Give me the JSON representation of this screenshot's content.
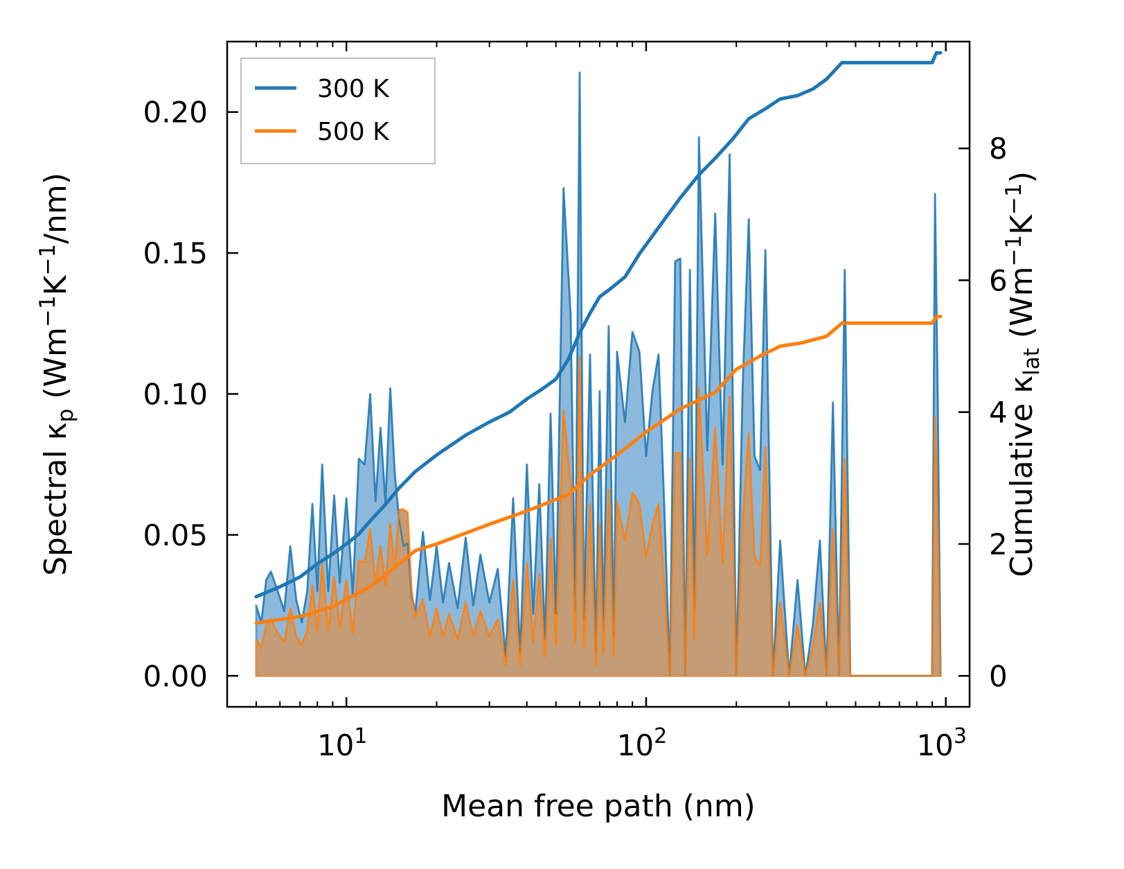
{
  "chart_data": {
    "type": "line",
    "title": "",
    "xlabel": "Mean free path (nm)",
    "xscale": "log",
    "xlim": [
      4.0,
      1200
    ],
    "x_ticks": [
      {
        "value": 10,
        "base": "10",
        "exp": "1"
      },
      {
        "value": 100,
        "base": "10",
        "exp": "2"
      },
      {
        "value": 1000,
        "base": "10",
        "exp": "3"
      }
    ],
    "y_left": {
      "label_parts": [
        "Spectral κ",
        "p",
        " (Wm",
        "−1",
        "K",
        "−1",
        "/nm)"
      ],
      "lim": [
        -0.011,
        0.225
      ],
      "ticks": [
        "0.00",
        "0.05",
        "0.10",
        "0.15",
        "0.20"
      ]
    },
    "y_right": {
      "label_parts": [
        "Cumulative κ",
        "lat",
        " (Wm",
        "−1",
        "K",
        "−1",
        ")"
      ],
      "lim": [
        -0.47,
        9.62
      ],
      "ticks": [
        "0",
        "2",
        "4",
        "6",
        "8"
      ]
    },
    "legend": {
      "position": "top-left",
      "entries": [
        "300 K",
        "500 K"
      ]
    },
    "colors": {
      "300 K": "#1f77b4",
      "500 K": "#ff7f0e",
      "spectral_300_fill": "#8cb9db",
      "spectral_500_fill": "#c49c75"
    },
    "series": [
      {
        "name": "300 K",
        "kind": "cumulative",
        "axis": "right",
        "x": [
          5.0,
          6.0,
          7.0,
          8.0,
          9.0,
          10.0,
          11.0,
          12.0,
          13.5,
          15.0,
          17.0,
          20.0,
          25.0,
          30.0,
          35.0,
          40.0,
          45.0,
          50.0,
          55.0,
          60.0,
          65.0,
          70.0,
          75.0,
          85.0,
          95.0,
          110.0,
          130.0,
          150.0,
          170.0,
          195.0,
          220.0,
          250.0,
          280.0,
          320.0,
          360.0,
          400.0,
          450.0,
          500.0,
          900.0,
          930.0,
          960.0
        ],
        "y": [
          1.2,
          1.35,
          1.5,
          1.7,
          1.85,
          2.0,
          2.15,
          2.35,
          2.6,
          2.85,
          3.1,
          3.35,
          3.65,
          3.85,
          4.0,
          4.2,
          4.35,
          4.5,
          4.8,
          5.2,
          5.5,
          5.75,
          5.85,
          6.05,
          6.4,
          6.8,
          7.25,
          7.6,
          7.85,
          8.15,
          8.45,
          8.6,
          8.75,
          8.8,
          8.9,
          9.05,
          9.3,
          9.3,
          9.3,
          9.45,
          9.45
        ]
      },
      {
        "name": "500 K",
        "kind": "cumulative",
        "axis": "right",
        "x": [
          5.0,
          7.0,
          9.0,
          12.0,
          15.0,
          17.0,
          20.0,
          30.0,
          40.0,
          55.0,
          65.0,
          80.0,
          100.0,
          130.0,
          170.0,
          200.0,
          240.0,
          280.0,
          330.0,
          400.0,
          450.0,
          500.0,
          900.0,
          930.0,
          960.0
        ],
        "y": [
          0.8,
          0.9,
          1.05,
          1.35,
          1.7,
          1.9,
          2.0,
          2.3,
          2.5,
          2.75,
          3.05,
          3.35,
          3.7,
          4.05,
          4.3,
          4.65,
          4.85,
          5.0,
          5.05,
          5.15,
          5.35,
          5.35,
          5.35,
          5.45,
          5.45
        ]
      },
      {
        "name": "300 K spectral",
        "kind": "spectral",
        "axis": "left",
        "x": [
          5.0,
          5.2,
          5.4,
          5.6,
          5.9,
          6.2,
          6.5,
          6.8,
          7.1,
          7.4,
          7.7,
          8.0,
          8.3,
          8.7,
          9.1,
          9.5,
          10.0,
          10.5,
          11.0,
          11.5,
          12.0,
          12.5,
          13.0,
          13.5,
          14.0,
          14.5,
          15.0,
          15.5,
          16.0,
          16.5,
          17.0,
          18.0,
          19.0,
          20.0,
          21.0,
          22.0,
          23.5,
          25.0,
          26.5,
          28.0,
          30.0,
          32.0,
          34.0,
          36.0,
          38.0,
          40.0,
          42.0,
          44.0,
          46.0,
          48.0,
          50.0,
          53.0,
          56.0,
          58.0,
          60.0,
          62.0,
          65.0,
          68.0,
          70.0,
          72.0,
          75.0,
          78.0,
          80.0,
          85.0,
          90.0,
          95.0,
          100.0,
          105.0,
          110.0,
          115.0,
          120.0,
          125.0,
          130.0,
          135.0,
          140.0,
          145.0,
          150.0,
          160.0,
          170.0,
          180.0,
          190.0,
          200.0,
          210.0,
          220.0,
          230.0,
          240.0,
          250.0,
          265.0,
          280.0,
          300.0,
          320.0,
          340.0,
          360.0,
          380.0,
          400.0,
          420.0,
          440.0,
          460.0,
          480.0,
          900.0,
          920.0,
          940.0,
          960.0
        ],
        "y": [
          0.025,
          0.019,
          0.034,
          0.037,
          0.03,
          0.023,
          0.046,
          0.027,
          0.019,
          0.03,
          0.061,
          0.03,
          0.075,
          0.03,
          0.064,
          0.033,
          0.063,
          0.029,
          0.077,
          0.075,
          0.1,
          0.062,
          0.088,
          0.061,
          0.102,
          0.072,
          0.055,
          0.046,
          0.047,
          0.028,
          0.023,
          0.051,
          0.027,
          0.046,
          0.026,
          0.04,
          0.024,
          0.049,
          0.025,
          0.043,
          0.026,
          0.038,
          0.007,
          0.063,
          0.008,
          0.075,
          0.022,
          0.068,
          0.013,
          0.093,
          0.022,
          0.173,
          0.128,
          0.023,
          0.214,
          0.02,
          0.114,
          0.008,
          0.101,
          0.016,
          0.124,
          0.014,
          0.115,
          0.09,
          0.122,
          0.115,
          0.078,
          0.101,
          0.114,
          0.06,
          0.0,
          0.147,
          0.148,
          0.0,
          0.144,
          0.024,
          0.191,
          0.08,
          0.164,
          0.075,
          0.185,
          0.0,
          0.103,
          0.162,
          0.078,
          0.073,
          0.151,
          0.0,
          0.048,
          0.0,
          0.034,
          0.0,
          0.018,
          0.048,
          0.0,
          0.097,
          0.0,
          0.144,
          0.0,
          0.0,
          0.171,
          0.098,
          0.0
        ]
      },
      {
        "name": "500 K spectral",
        "kind": "spectral",
        "axis": "left",
        "x": [
          5.0,
          5.2,
          5.4,
          5.6,
          5.9,
          6.2,
          6.5,
          6.8,
          7.1,
          7.4,
          7.7,
          8.0,
          8.3,
          8.7,
          9.1,
          9.5,
          10.0,
          10.5,
          11.0,
          11.5,
          12.0,
          12.5,
          13.0,
          13.5,
          14.0,
          14.5,
          15.0,
          15.5,
          16.0,
          16.5,
          17.0,
          18.0,
          19.0,
          20.0,
          21.0,
          22.0,
          23.5,
          25.0,
          26.5,
          28.0,
          30.0,
          32.0,
          34.0,
          36.0,
          38.0,
          40.0,
          42.0,
          44.0,
          46.0,
          48.0,
          50.0,
          53.0,
          56.0,
          58.0,
          60.0,
          62.0,
          65.0,
          68.0,
          70.0,
          72.0,
          75.0,
          78.0,
          80.0,
          85.0,
          90.0,
          95.0,
          100.0,
          105.0,
          110.0,
          115.0,
          120.0,
          125.0,
          130.0,
          135.0,
          140.0,
          145.0,
          150.0,
          160.0,
          170.0,
          180.0,
          190.0,
          200.0,
          210.0,
          220.0,
          230.0,
          240.0,
          250.0,
          265.0,
          280.0,
          300.0,
          320.0,
          340.0,
          360.0,
          380.0,
          400.0,
          420.0,
          440.0,
          460.0,
          480.0,
          900.0,
          920.0,
          940.0,
          960.0
        ],
        "y": [
          0.013,
          0.01,
          0.018,
          0.02,
          0.015,
          0.012,
          0.024,
          0.014,
          0.011,
          0.016,
          0.032,
          0.016,
          0.04,
          0.016,
          0.035,
          0.017,
          0.034,
          0.015,
          0.041,
          0.04,
          0.052,
          0.033,
          0.046,
          0.032,
          0.054,
          0.038,
          0.059,
          0.059,
          0.058,
          0.03,
          0.021,
          0.027,
          0.014,
          0.024,
          0.014,
          0.022,
          0.013,
          0.026,
          0.014,
          0.023,
          0.014,
          0.02,
          0.004,
          0.034,
          0.004,
          0.04,
          0.012,
          0.036,
          0.007,
          0.049,
          0.011,
          0.094,
          0.069,
          0.012,
          0.113,
          0.01,
          0.061,
          0.004,
          0.054,
          0.008,
          0.066,
          0.007,
          0.062,
          0.048,
          0.065,
          0.061,
          0.042,
          0.054,
          0.061,
          0.032,
          0.0,
          0.079,
          0.079,
          0.0,
          0.077,
          0.013,
          0.102,
          0.043,
          0.088,
          0.04,
          0.099,
          0.0,
          0.055,
          0.086,
          0.042,
          0.039,
          0.081,
          0.0,
          0.026,
          0.0,
          0.018,
          0.0,
          0.01,
          0.026,
          0.0,
          0.052,
          0.0,
          0.077,
          0.0,
          0.0,
          0.092,
          0.053,
          0.0
        ]
      }
    ]
  }
}
